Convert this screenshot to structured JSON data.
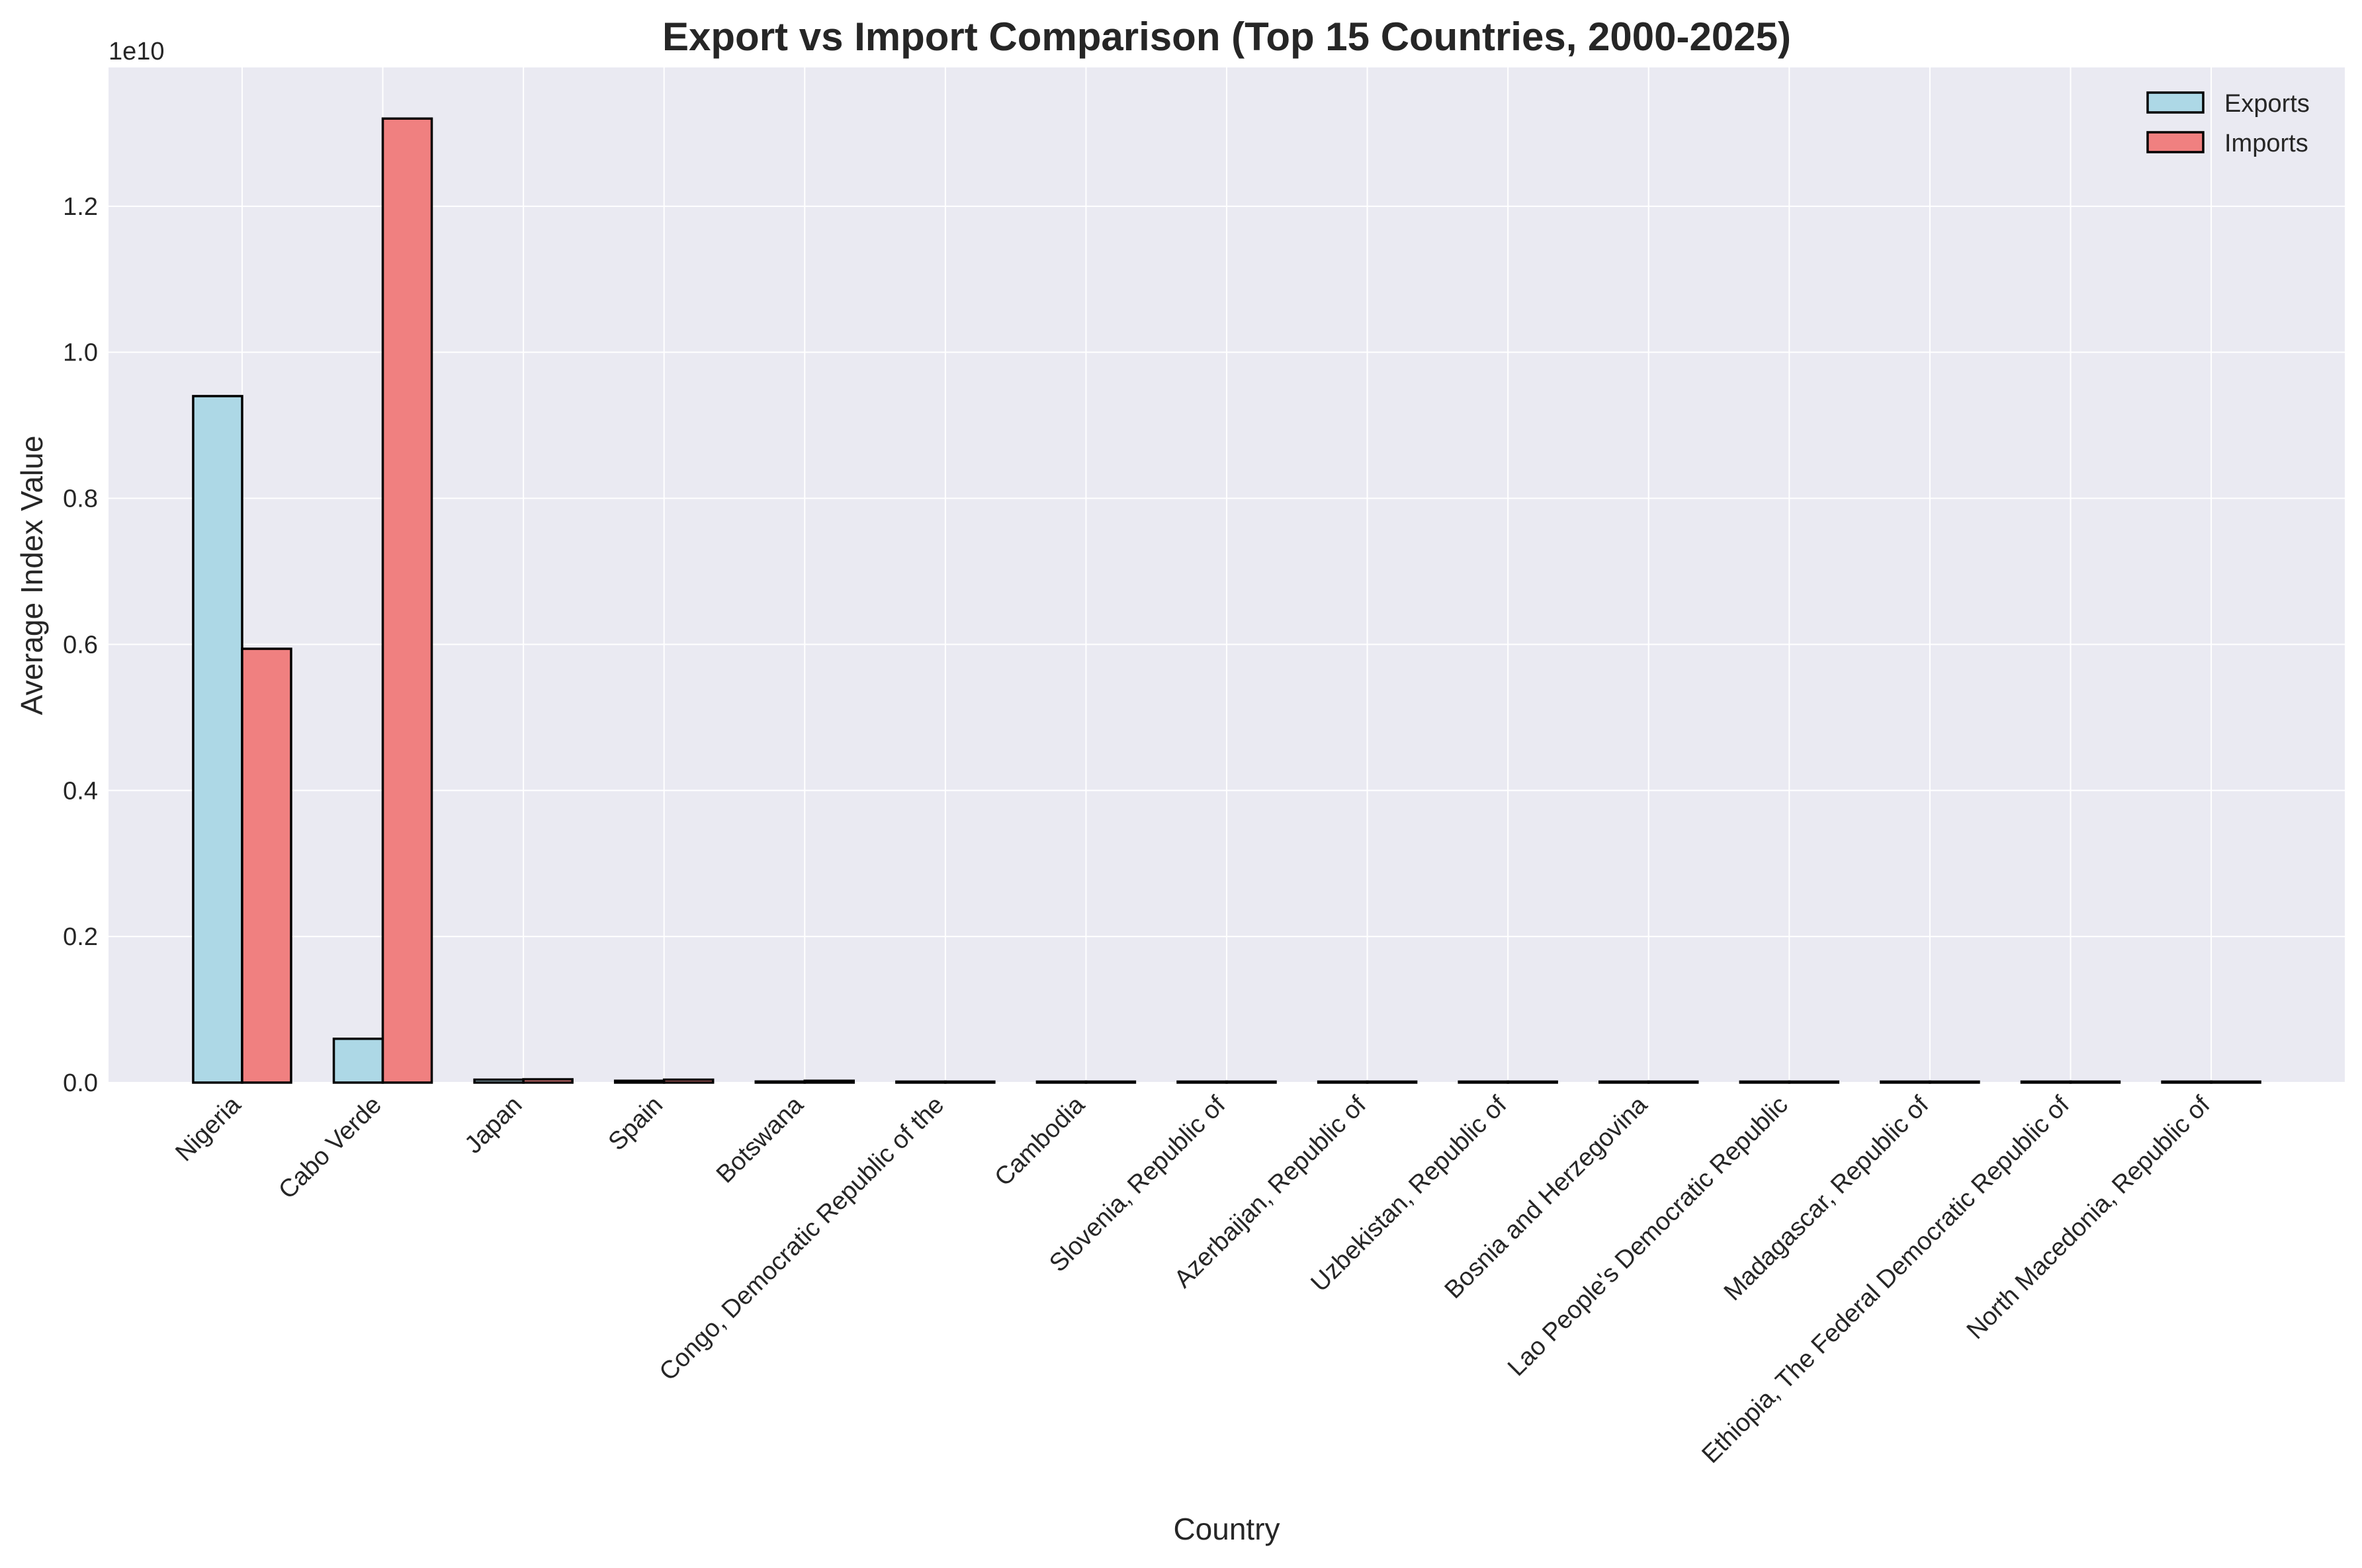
{
  "chart_data": {
    "type": "bar",
    "title": "Export vs Import Comparison (Top 15 Countries, 2000-2025)",
    "xlabel": "Country",
    "ylabel": "Average Index Value",
    "y_offset_label": "1e10",
    "ylim": [
      0,
      13900000000.0
    ],
    "yticks": [
      0,
      2000000000.0,
      4000000000.0,
      6000000000.0,
      8000000000.0,
      10000000000.0,
      12000000000.0
    ],
    "ytick_labels": [
      "0.0",
      "0.2",
      "0.4",
      "0.6",
      "0.8",
      "1.0",
      "1.2"
    ],
    "grid": true,
    "legend_position": "top-right",
    "categories": [
      "Nigeria",
      "Cabo Verde",
      "Japan",
      "Spain",
      "Botswana",
      "Congo, Democratic Republic of the",
      "Cambodia",
      "Slovenia, Republic of",
      "Azerbaijan, Republic of",
      "Uzbekistan, Republic of",
      "Bosnia and Herzegovina",
      "Lao People's Democratic Republic",
      "Madagascar, Republic of",
      "Ethiopia, The Federal Democratic Republic of",
      "North Macedonia, Republic of"
    ],
    "series": [
      {
        "name": "Exports",
        "color": "#add8e6",
        "values": [
          9400000000,
          600000000,
          40000000,
          25000000,
          15000000,
          5000000,
          3000000,
          3000000,
          2000000,
          2000000,
          2000000,
          1000000,
          1000000,
          1000000,
          1000000
        ]
      },
      {
        "name": "Imports",
        "color": "#f08080",
        "values": [
          5940000000,
          13200000000,
          45000000,
          40000000,
          25000000,
          8000000,
          5000000,
          4000000,
          3000000,
          3000000,
          3000000,
          2000000,
          2000000,
          2000000,
          2000000
        ]
      }
    ]
  }
}
